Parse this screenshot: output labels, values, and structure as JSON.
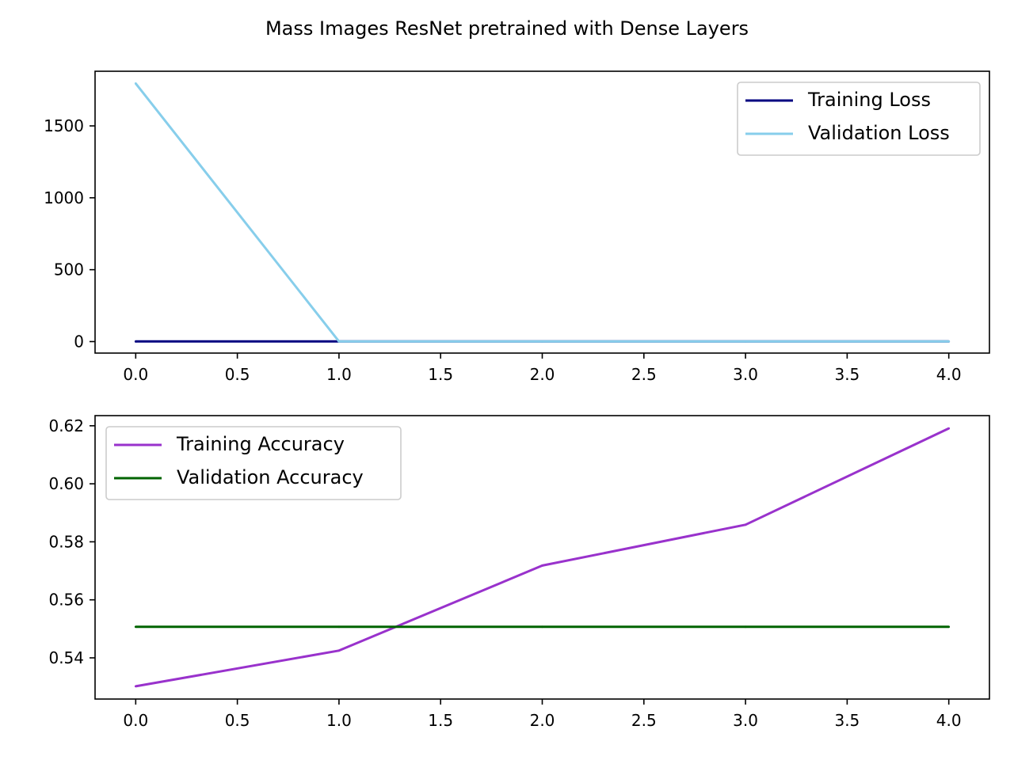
{
  "figure": {
    "title": "Mass Images ResNet pretrained with Dense Layers"
  },
  "chart_data": [
    {
      "type": "line",
      "x": [
        0,
        1,
        2,
        3,
        4
      ],
      "series": [
        {
          "name": "Training Loss",
          "values": [
            0.75,
            0.69,
            0.69,
            0.69,
            0.68
          ],
          "color": "#000080"
        },
        {
          "name": "Validation Loss",
          "values": [
            1795,
            0.69,
            0.69,
            0.69,
            0.69
          ],
          "color": "#87ceeb"
        }
      ],
      "xlim": [
        -0.2,
        4.2
      ],
      "ylim": [
        -80,
        1880
      ],
      "xticks": [
        0.0,
        0.5,
        1.0,
        1.5,
        2.0,
        2.5,
        3.0,
        3.5,
        4.0
      ],
      "xtick_labels": [
        "0.0",
        "0.5",
        "1.0",
        "1.5",
        "2.0",
        "2.5",
        "3.0",
        "3.5",
        "4.0"
      ],
      "yticks": [
        0,
        500,
        1000,
        1500
      ],
      "ytick_labels": [
        "0",
        "500",
        "1000",
        "1500"
      ],
      "legend_position": "upper right",
      "grid": false
    },
    {
      "type": "line",
      "x": [
        0,
        1,
        2,
        3,
        4
      ],
      "series": [
        {
          "name": "Training Accuracy",
          "values": [
            0.5302,
            0.5425,
            0.5718,
            0.5859,
            0.6191
          ],
          "color": "#9932cc"
        },
        {
          "name": "Validation Accuracy",
          "values": [
            0.5507,
            0.5507,
            0.5507,
            0.5507,
            0.5507
          ],
          "color": "#006400"
        }
      ],
      "xlim": [
        -0.2,
        4.2
      ],
      "ylim": [
        0.5258,
        0.6235
      ],
      "xticks": [
        0.0,
        0.5,
        1.0,
        1.5,
        2.0,
        2.5,
        3.0,
        3.5,
        4.0
      ],
      "xtick_labels": [
        "0.0",
        "0.5",
        "1.0",
        "1.5",
        "2.0",
        "2.5",
        "3.0",
        "3.5",
        "4.0"
      ],
      "yticks": [
        0.54,
        0.56,
        0.58,
        0.6,
        0.62
      ],
      "ytick_labels": [
        "0.54",
        "0.56",
        "0.58",
        "0.60",
        "0.62"
      ],
      "legend_position": "upper left",
      "grid": false
    }
  ]
}
